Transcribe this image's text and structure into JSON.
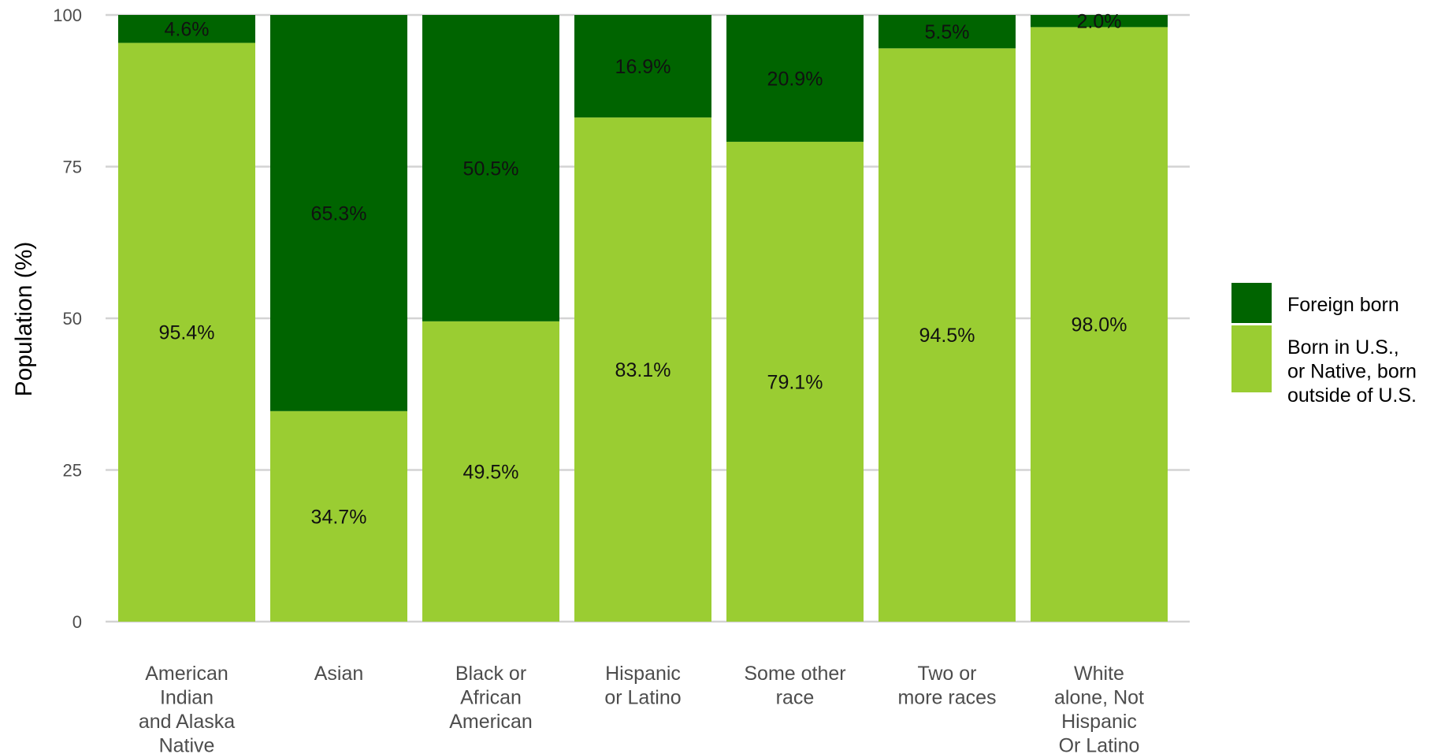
{
  "chart_data": {
    "type": "bar",
    "stacked": true,
    "orientation": "vertical",
    "title": "",
    "xlabel": "",
    "ylabel": "Population (%)",
    "ylim": [
      0,
      100
    ],
    "yticks": [
      0,
      25,
      50,
      75,
      100
    ],
    "grid": true,
    "legend_position": "right",
    "categories": [
      "American Indian and Alaska Native",
      "Asian",
      "Black or African American",
      "Hispanic or Latino",
      "Some other race",
      "Two or more races",
      "White alone, Not Hispanic Or Latino"
    ],
    "category_label_lines": [
      [
        "American",
        "Indian",
        "and Alaska",
        "Native"
      ],
      [
        "Asian"
      ],
      [
        "Black or",
        "African",
        "American"
      ],
      [
        "Hispanic",
        "or Latino"
      ],
      [
        "Some other",
        "race"
      ],
      [
        "Two or",
        "more races"
      ],
      [
        "White",
        "alone, Not",
        "Hispanic",
        "Or Latino"
      ]
    ],
    "series": [
      {
        "name": "Born in U.S., or Native, born outside of U.S.",
        "legend_lines": [
          "Born in U.S.,",
          "or Native, born",
          "outside of U.S."
        ],
        "color": "#9acd32",
        "values": [
          95.4,
          34.7,
          49.5,
          83.1,
          79.1,
          94.5,
          98.0
        ],
        "labels": [
          "95.4%",
          "34.7%",
          "49.5%",
          "83.1%",
          "79.1%",
          "94.5%",
          "98.0%"
        ]
      },
      {
        "name": "Foreign born",
        "legend_lines": [
          "Foreign born"
        ],
        "color": "#006400",
        "values": [
          4.6,
          65.3,
          50.5,
          16.9,
          20.9,
          5.5,
          2.0
        ],
        "labels": [
          "4.6%",
          "65.3%",
          "50.5%",
          "16.9%",
          "20.9%",
          "5.5%",
          "2.0%"
        ]
      }
    ],
    "legend_order": [
      "Foreign born",
      "Born in U.S., or Native, born outside of U.S."
    ]
  }
}
